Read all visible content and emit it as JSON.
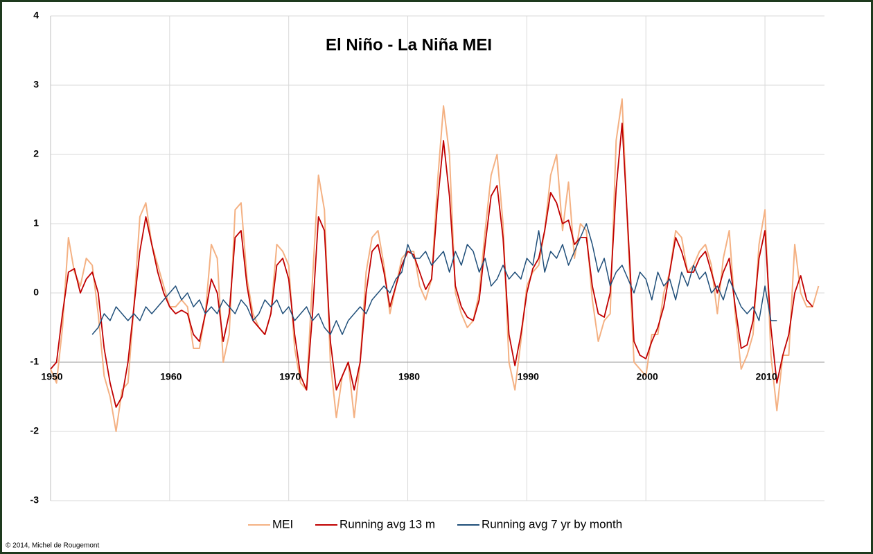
{
  "chart_data": {
    "type": "line",
    "title": "El Niño - La Niña MEI",
    "credit": "© 2014, Michel de Rougemont",
    "x": [
      1950,
      1950.5,
      1951,
      1951.5,
      1952,
      1952.5,
      1953,
      1953.5,
      1954,
      1954.5,
      1955,
      1955.5,
      1956,
      1956.5,
      1957,
      1957.5,
      1958,
      1958.5,
      1959,
      1959.5,
      1960,
      1960.5,
      1961,
      1961.5,
      1962,
      1962.5,
      1963,
      1963.5,
      1964,
      1964.5,
      1965,
      1965.5,
      1966,
      1966.5,
      1967,
      1967.5,
      1968,
      1968.5,
      1969,
      1969.5,
      1970,
      1970.5,
      1971,
      1971.5,
      1972,
      1972.5,
      1973,
      1973.5,
      1974,
      1974.5,
      1975,
      1975.5,
      1976,
      1976.5,
      1977,
      1977.5,
      1978,
      1978.5,
      1979,
      1979.5,
      1980,
      1980.5,
      1981,
      1981.5,
      1982,
      1982.5,
      1983,
      1983.5,
      1984,
      1984.5,
      1985,
      1985.5,
      1986,
      1986.5,
      1987,
      1987.5,
      1988,
      1988.5,
      1989,
      1989.5,
      1990,
      1990.5,
      1991,
      1991.5,
      1992,
      1992.5,
      1993,
      1993.5,
      1994,
      1994.5,
      1995,
      1995.5,
      1996,
      1996.5,
      1997,
      1997.5,
      1998,
      1998.5,
      1999,
      1999.5,
      2000,
      2000.5,
      2001,
      2001.5,
      2002,
      2002.5,
      2003,
      2003.5,
      2004,
      2004.5,
      2005,
      2005.5,
      2006,
      2006.5,
      2007,
      2007.5,
      2008,
      2008.5,
      2009,
      2009.5,
      2010,
      2010.5,
      2011,
      2011.5,
      2012,
      2012.5,
      2013,
      2013.5,
      2014,
      2014.5
    ],
    "series": [
      {
        "name": "MEI",
        "color": "#f4b183",
        "width": 2,
        "values": [
          -1.1,
          -1.3,
          -0.5,
          0.8,
          0.3,
          0.1,
          0.5,
          0.4,
          -0.3,
          -1.2,
          -1.5,
          -2.0,
          -1.4,
          -1.3,
          -0.2,
          1.1,
          1.3,
          0.7,
          0.4,
          0.1,
          -0.2,
          -0.2,
          -0.1,
          -0.2,
          -0.8,
          -0.8,
          -0.3,
          0.7,
          0.5,
          -1.0,
          -0.6,
          1.2,
          1.3,
          0.2,
          -0.3,
          -0.5,
          -0.6,
          -0.3,
          0.7,
          0.6,
          0.4,
          -0.8,
          -1.3,
          -1.4,
          0.2,
          1.7,
          1.2,
          -1.0,
          -1.8,
          -1.2,
          -1.0,
          -1.8,
          -1.0,
          0.3,
          0.8,
          0.9,
          0.4,
          -0.3,
          0.1,
          0.5,
          0.6,
          0.6,
          0.1,
          -0.1,
          0.2,
          1.6,
          2.7,
          2.0,
          0.0,
          -0.3,
          -0.5,
          -0.4,
          0.0,
          0.9,
          1.7,
          2.0,
          1.0,
          -1.0,
          -1.4,
          -0.7,
          0.1,
          0.3,
          0.4,
          0.9,
          1.7,
          2.0,
          0.9,
          1.6,
          0.5,
          1.0,
          0.9,
          -0.1,
          -0.7,
          -0.4,
          -0.3,
          2.2,
          2.8,
          0.8,
          -1.0,
          -1.1,
          -1.2,
          -0.6,
          -0.6,
          0.0,
          0.3,
          0.9,
          0.8,
          0.3,
          0.4,
          0.6,
          0.7,
          0.4,
          -0.3,
          0.5,
          0.9,
          -0.3,
          -1.1,
          -0.9,
          -0.6,
          0.7,
          1.2,
          -0.9,
          -1.7,
          -0.9,
          -0.9,
          0.7,
          0.0,
          -0.2,
          -0.2,
          0.1
        ]
      },
      {
        "name": "Running avg 13 m",
        "color": "#c00000",
        "width": 1.8,
        "values": [
          -1.1,
          -1.0,
          -0.3,
          0.3,
          0.35,
          0.0,
          0.2,
          0.3,
          0.0,
          -0.8,
          -1.3,
          -1.65,
          -1.5,
          -1.0,
          -0.2,
          0.6,
          1.1,
          0.7,
          0.3,
          0.0,
          -0.2,
          -0.3,
          -0.25,
          -0.3,
          -0.6,
          -0.7,
          -0.3,
          0.2,
          0.0,
          -0.7,
          -0.3,
          0.8,
          0.9,
          0.1,
          -0.4,
          -0.5,
          -0.6,
          -0.3,
          0.4,
          0.5,
          0.2,
          -0.6,
          -1.2,
          -1.4,
          -0.3,
          1.1,
          0.9,
          -0.7,
          -1.4,
          -1.2,
          -1.0,
          -1.4,
          -1.0,
          0.0,
          0.6,
          0.7,
          0.3,
          -0.2,
          0.1,
          0.4,
          0.6,
          0.55,
          0.3,
          0.05,
          0.2,
          1.3,
          2.2,
          1.4,
          0.1,
          -0.2,
          -0.35,
          -0.4,
          -0.1,
          0.7,
          1.4,
          1.55,
          0.8,
          -0.6,
          -1.05,
          -0.6,
          0.0,
          0.35,
          0.5,
          0.9,
          1.45,
          1.3,
          1.0,
          1.05,
          0.7,
          0.8,
          0.8,
          0.1,
          -0.3,
          -0.35,
          0.0,
          1.5,
          2.45,
          0.9,
          -0.7,
          -0.9,
          -0.95,
          -0.7,
          -0.5,
          -0.2,
          0.3,
          0.8,
          0.6,
          0.3,
          0.3,
          0.5,
          0.6,
          0.3,
          0.0,
          0.3,
          0.5,
          -0.2,
          -0.8,
          -0.75,
          -0.4,
          0.5,
          0.9,
          -0.5,
          -1.3,
          -0.9,
          -0.6,
          0.0,
          0.25,
          -0.1,
          -0.2,
          null
        ]
      },
      {
        "name": "Running avg 7 yr by month",
        "color": "#1f4e79",
        "width": 1.5,
        "values": [
          null,
          null,
          null,
          null,
          null,
          null,
          null,
          -0.6,
          -0.5,
          -0.3,
          -0.4,
          -0.2,
          -0.3,
          -0.4,
          -0.3,
          -0.4,
          -0.2,
          -0.3,
          -0.2,
          -0.1,
          0.0,
          0.1,
          -0.1,
          0.0,
          -0.2,
          -0.1,
          -0.3,
          -0.2,
          -0.3,
          -0.1,
          -0.2,
          -0.3,
          -0.1,
          -0.2,
          -0.4,
          -0.3,
          -0.1,
          -0.2,
          -0.1,
          -0.3,
          -0.2,
          -0.4,
          -0.3,
          -0.2,
          -0.4,
          -0.3,
          -0.5,
          -0.6,
          -0.4,
          -0.6,
          -0.4,
          -0.3,
          -0.2,
          -0.3,
          -0.1,
          0.0,
          0.1,
          0.0,
          0.2,
          0.3,
          0.7,
          0.5,
          0.5,
          0.6,
          0.4,
          0.5,
          0.6,
          0.3,
          0.6,
          0.4,
          0.7,
          0.6,
          0.3,
          0.5,
          0.1,
          0.2,
          0.4,
          0.2,
          0.3,
          0.2,
          0.5,
          0.4,
          0.9,
          0.3,
          0.6,
          0.5,
          0.7,
          0.4,
          0.6,
          0.8,
          1.0,
          0.7,
          0.3,
          0.5,
          0.1,
          0.3,
          0.4,
          0.2,
          0.0,
          0.3,
          0.2,
          -0.1,
          0.3,
          0.1,
          0.2,
          -0.1,
          0.3,
          0.1,
          0.4,
          0.2,
          0.3,
          0.0,
          0.1,
          -0.1,
          0.2,
          0.0,
          -0.2,
          -0.3,
          -0.2,
          -0.4,
          0.1,
          -0.4,
          -0.4,
          null,
          null,
          null,
          null,
          null,
          null,
          null
        ]
      }
    ],
    "xlim": [
      1950,
      2015
    ],
    "xticks": [
      1950,
      1960,
      1970,
      1980,
      1990,
      2000,
      2010
    ],
    "ylim": [
      -3,
      4
    ],
    "yticks": [
      -3,
      -2,
      -1,
      0,
      1,
      2,
      3,
      4
    ],
    "x_axis_crosses": -1,
    "grid": true,
    "legend": "bottom"
  }
}
